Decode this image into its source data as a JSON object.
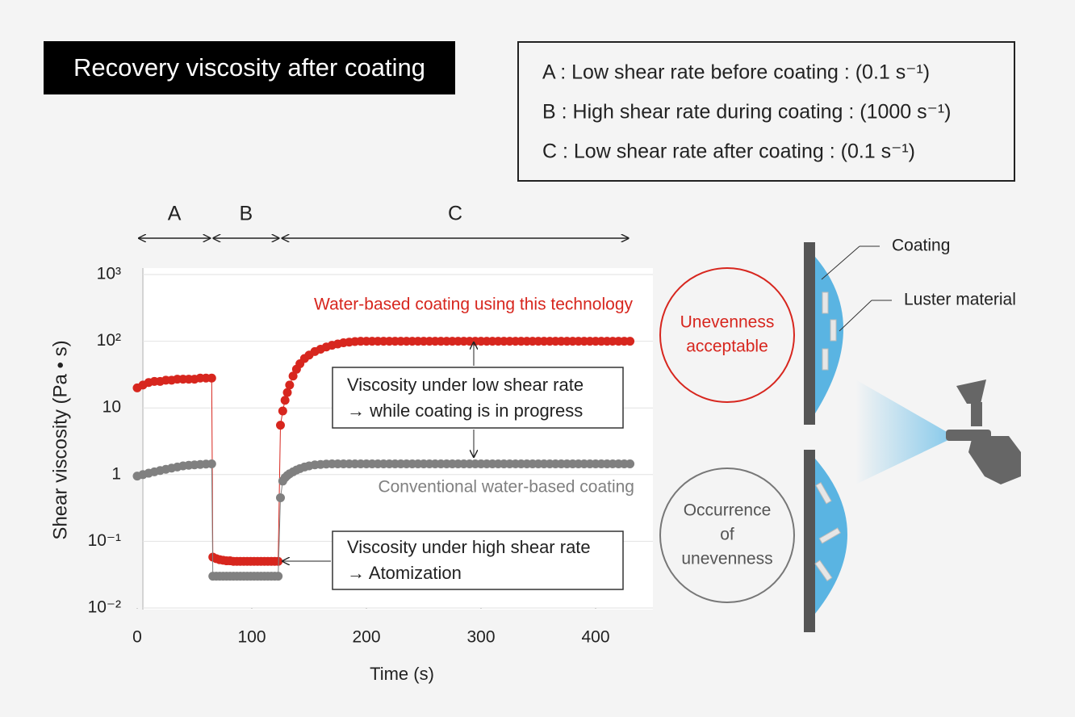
{
  "chart_data": {
    "type": "scatter",
    "title": "Recovery viscosity after coating",
    "conditions": [
      "A : Low shear rate before coating : (0.1 s⁻¹)",
      "B : High shear rate during coating : (1000 s⁻¹)",
      "C : Low shear rate after coating : (0.1 s⁻¹)"
    ],
    "phases": [
      {
        "label": "A",
        "start": 0,
        "end": 65
      },
      {
        "label": "B",
        "start": 65,
        "end": 125
      },
      {
        "label": "C",
        "start": 125,
        "end": 430
      }
    ],
    "x_label": "Time (s)",
    "y_label": "Shear viscosity (Pa • s)",
    "xlim": [
      0,
      450
    ],
    "xticks": [
      0,
      100,
      200,
      300,
      400
    ],
    "ylim": [
      0.01,
      1000
    ],
    "log_y": true,
    "grid": true,
    "yticks": [
      {
        "value": 1000,
        "label": "10³"
      },
      {
        "value": 100,
        "label": "10²"
      },
      10,
      1,
      {
        "value": 0.1,
        "label": "10⁻¹"
      },
      {
        "value": 0.01,
        "label": "10⁻²"
      }
    ],
    "x": [
      0,
      5,
      10,
      15,
      20,
      25,
      30,
      35,
      40,
      45,
      50,
      55,
      60,
      65,
      66,
      69,
      72,
      75,
      78,
      81,
      84,
      87,
      90,
      93,
      96,
      99,
      102,
      105,
      108,
      111,
      114,
      117,
      120,
      123,
      125,
      127,
      129,
      131,
      133,
      136,
      139,
      142,
      146,
      150,
      155,
      160,
      165,
      170,
      175,
      180,
      185,
      190,
      195,
      200,
      205,
      210,
      215,
      220,
      225,
      230,
      235,
      240,
      245,
      250,
      255,
      260,
      265,
      270,
      275,
      280,
      285,
      290,
      295,
      300,
      305,
      310,
      315,
      320,
      325,
      330,
      335,
      340,
      345,
      350,
      355,
      360,
      365,
      370,
      375,
      380,
      385,
      390,
      395,
      400,
      405,
      410,
      415,
      420,
      425,
      430
    ],
    "series": [
      {
        "name": "Water-based coating using this technology",
        "color": "#d7261e",
        "values": [
          20,
          22,
          24,
          25,
          25,
          26,
          26,
          27,
          27,
          27,
          27,
          28,
          28,
          28,
          0.058,
          0.055,
          0.053,
          0.052,
          0.051,
          0.051,
          0.05,
          0.05,
          0.05,
          0.05,
          0.05,
          0.05,
          0.05,
          0.05,
          0.05,
          0.05,
          0.05,
          0.05,
          0.05,
          0.05,
          5.5,
          9,
          13,
          17,
          22,
          30,
          38,
          46,
          55,
          62,
          70,
          76,
          82,
          87,
          91,
          95,
          97,
          99,
          100,
          100,
          100,
          100,
          100,
          100,
          100,
          100,
          100,
          100,
          100,
          100,
          100,
          100,
          100,
          100,
          100,
          100,
          100,
          100,
          100,
          100,
          100,
          100,
          100,
          100,
          100,
          100,
          100,
          100,
          100,
          100,
          100,
          100,
          100,
          100,
          100,
          100,
          100,
          100,
          100,
          100,
          100,
          100,
          100,
          100,
          100,
          100
        ]
      },
      {
        "name": "Conventional water-based coating",
        "color": "#808080",
        "values": [
          0.95,
          1.0,
          1.05,
          1.1,
          1.15,
          1.2,
          1.25,
          1.3,
          1.35,
          1.38,
          1.4,
          1.42,
          1.44,
          1.45,
          0.03,
          0.03,
          0.03,
          0.03,
          0.03,
          0.03,
          0.03,
          0.03,
          0.03,
          0.03,
          0.03,
          0.03,
          0.03,
          0.03,
          0.03,
          0.03,
          0.03,
          0.03,
          0.03,
          0.03,
          0.45,
          0.8,
          0.9,
          0.97,
          1.03,
          1.1,
          1.17,
          1.23,
          1.3,
          1.35,
          1.4,
          1.42,
          1.44,
          1.45,
          1.45,
          1.45,
          1.45,
          1.45,
          1.45,
          1.45,
          1.45,
          1.45,
          1.45,
          1.45,
          1.45,
          1.45,
          1.45,
          1.45,
          1.45,
          1.45,
          1.45,
          1.45,
          1.45,
          1.45,
          1.45,
          1.45,
          1.45,
          1.45,
          1.45,
          1.45,
          1.45,
          1.45,
          1.45,
          1.45,
          1.45,
          1.45,
          1.45,
          1.45,
          1.45,
          1.45,
          1.45,
          1.45,
          1.45,
          1.45,
          1.45,
          1.45,
          1.45,
          1.45,
          1.45,
          1.45,
          1.45,
          1.45,
          1.45,
          1.45,
          1.45,
          1.45
        ]
      }
    ],
    "annotations": {
      "low_shear": [
        "Viscosity under low shear rate",
        "→ while coating is in progress"
      ],
      "high_shear": [
        "Viscosity under high shear rate",
        "→ Atomization"
      ]
    },
    "diagram": {
      "coating": "Coating",
      "luster": "Luster material",
      "good": [
        "Unevenness",
        "acceptable"
      ],
      "bad": [
        "Occurrence",
        "of",
        "unevenness"
      ]
    }
  }
}
